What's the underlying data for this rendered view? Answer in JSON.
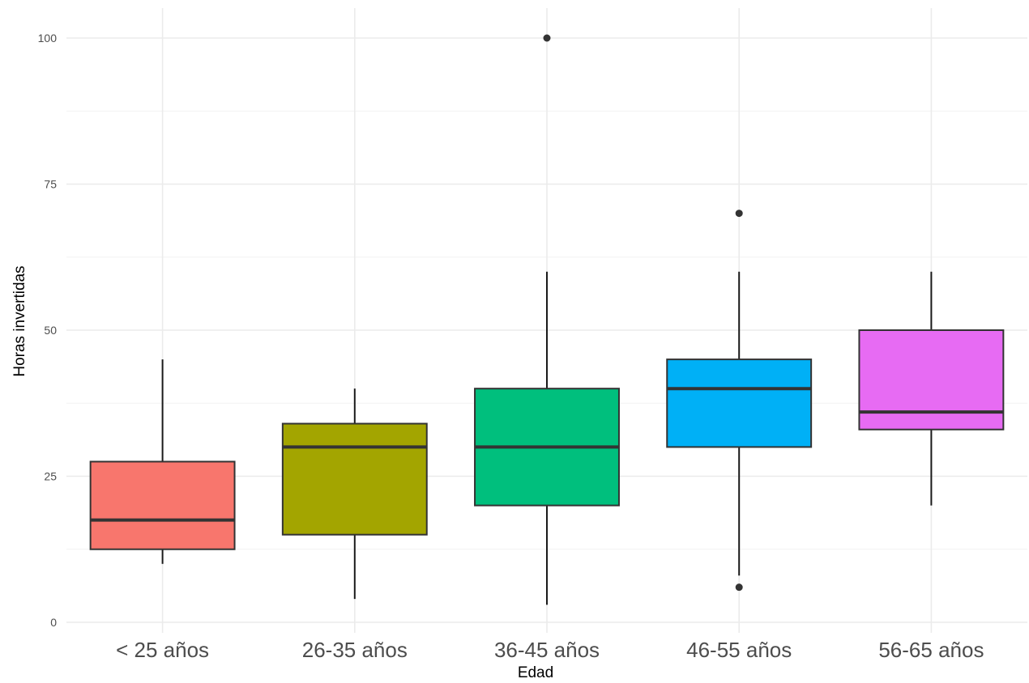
{
  "chart_data": {
    "type": "boxplot",
    "xlabel": "Edad",
    "ylabel": "Horas invertidas",
    "ylim": [
      -1.2,
      105
    ],
    "y_ticks": [
      0,
      25,
      50,
      75,
      100
    ],
    "grid": true,
    "legend": "none",
    "categories": [
      "< 25 años",
      "26-35 años",
      "36-45 años",
      "46-55 años",
      "56-65 años"
    ],
    "boxes": [
      {
        "category": "< 25 años",
        "whisker_low": 10,
        "q1": 12.5,
        "median": 17.5,
        "q3": 27.5,
        "whisker_high": 45,
        "outliers": [],
        "color": "#F8766D"
      },
      {
        "category": "26-35 años",
        "whisker_low": 4,
        "q1": 15,
        "median": 30,
        "q3": 34,
        "whisker_high": 40,
        "outliers": [],
        "color": "#A3A500"
      },
      {
        "category": "36-45 años",
        "whisker_low": 3,
        "q1": 20,
        "median": 30,
        "q3": 40,
        "whisker_high": 60,
        "outliers": [
          100
        ],
        "color": "#00BF7D"
      },
      {
        "category": "46-55 años",
        "whisker_low": 8,
        "q1": 30,
        "median": 40,
        "q3": 45,
        "whisker_high": 60,
        "outliers": [
          70,
          6
        ],
        "color": "#00B0F6"
      },
      {
        "category": "56-65 años",
        "whisker_low": 20,
        "q1": 33,
        "median": 36,
        "q3": 50,
        "whisker_high": 60,
        "outliers": [],
        "color": "#E76BF3"
      }
    ]
  }
}
